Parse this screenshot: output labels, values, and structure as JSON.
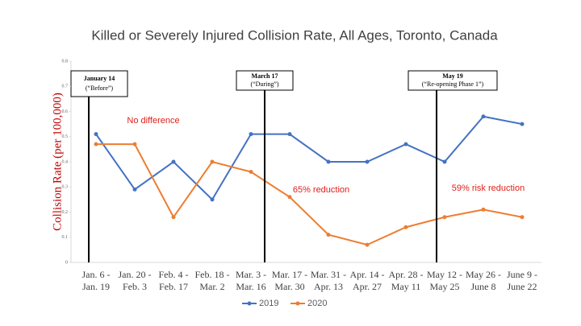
{
  "chart_data": {
    "type": "line",
    "title": "Killed or Severely Injured Collision Rate, All Ages, Toronto, Canada",
    "y_label": "Collision Rate (per 100,000)",
    "categories": [
      [
        "Jan. 6 -",
        "Jan. 19"
      ],
      [
        "Jan. 20 -",
        "Feb. 3"
      ],
      [
        "Feb. 4 -",
        "Feb. 17"
      ],
      [
        "Feb. 18 -",
        "Mar. 2"
      ],
      [
        "Mar. 3 -",
        "Mar. 16"
      ],
      [
        "Mar. 17 -",
        "Mar. 30"
      ],
      [
        "Mar. 31 -",
        "Apr. 13"
      ],
      [
        "Apr. 14 -",
        "Apr. 27"
      ],
      [
        "Apr. 28 -",
        "May 11"
      ],
      [
        "May 12 -",
        "May 25"
      ],
      [
        "May 26 -",
        "June 8"
      ],
      [
        "June 9 -",
        "June 22"
      ]
    ],
    "series": [
      {
        "name": "2019",
        "color": "#4472c4",
        "values": [
          0.51,
          0.29,
          0.4,
          0.25,
          0.51,
          0.51,
          0.4,
          0.4,
          0.47,
          0.4,
          0.58,
          0.55
        ]
      },
      {
        "name": "2020",
        "color": "#ed7d31",
        "values": [
          0.47,
          0.47,
          0.18,
          0.4,
          0.36,
          0.26,
          0.11,
          0.07,
          0.14,
          0.18,
          0.21,
          0.18
        ]
      }
    ],
    "ylim": [
      0,
      0.8
    ],
    "yticks": [
      0,
      0.1,
      0.2,
      0.3,
      0.4,
      0.5,
      0.6,
      0.7,
      0.8
    ],
    "legend": "bottom",
    "markers": [
      {
        "date": "January 14",
        "label": "(“Before”)"
      },
      {
        "date": "March 17",
        "label": "(“During”)"
      },
      {
        "date": "May 19",
        "label": "(“Re-opening Phase 1”)"
      }
    ],
    "annotations": [
      "No difference",
      "65% reduction",
      "59% risk reduction"
    ]
  }
}
